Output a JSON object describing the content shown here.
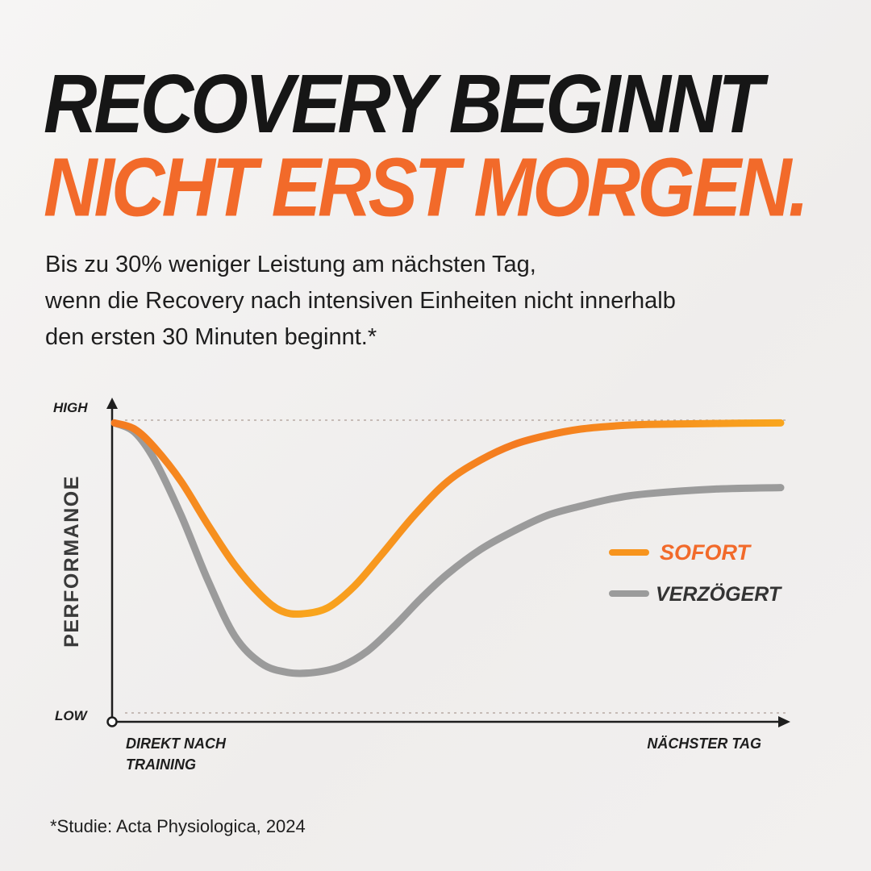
{
  "headline": {
    "line1": "RECOVERY BEGINNT",
    "line2": "NICHT ERST MORGEN."
  },
  "subtitle": {
    "line1": "Bis zu 30% weniger Leistung am nächsten Tag,",
    "line2": "wenn die Recovery nach intensiven Einheiten nicht innerhalb",
    "line3": "den ersten 30 Minuten beginnt.*"
  },
  "footnote": "*Studie: Acta Physiologica, 2024",
  "colors": {
    "headline_dark": "#161616",
    "accent": "#f26a2a",
    "sofort": "#f7941d",
    "verzoegert": "#9b9b9b",
    "axis": "#1e1e1e"
  },
  "chart_data": {
    "type": "line",
    "title": "",
    "ylabel": "PERFORMANOE",
    "yticks": [
      "HIGH",
      "LOW"
    ],
    "xlabels": {
      "start_line1": "DIREKT NACH",
      "start_line2": "TRAINING",
      "end": "NÄCHSTER TAG"
    },
    "xlim": [
      0,
      100
    ],
    "ylim": [
      0,
      100
    ],
    "grid": "dotted reference lines at HIGH and LOW",
    "legend_position": "right",
    "series": [
      {
        "name": "SOFORT",
        "color": "#f7941d",
        "x": [
          0,
          3,
          6,
          10,
          14,
          18,
          22,
          25,
          28,
          32,
          36,
          40,
          45,
          50,
          55,
          60,
          65,
          70,
          75,
          80,
          90,
          100
        ],
        "y": [
          91,
          89,
          83,
          72,
          58,
          45,
          35,
          30,
          29,
          31,
          38,
          48,
          61,
          72,
          79,
          84,
          87,
          89,
          90,
          90.5,
          90.8,
          91
        ]
      },
      {
        "name": "VERZÖGERT",
        "color": "#9b9b9b",
        "x": [
          0,
          3,
          6,
          10,
          14,
          18,
          22,
          26,
          30,
          34,
          38,
          42,
          46,
          50,
          55,
          60,
          65,
          70,
          75,
          80,
          90,
          100
        ],
        "y": [
          91,
          88,
          79,
          61,
          40,
          22,
          13,
          10,
          10,
          12,
          17,
          25,
          34,
          42,
          50,
          56,
          61,
          64,
          66.5,
          68,
          69.5,
          70
        ]
      }
    ]
  }
}
